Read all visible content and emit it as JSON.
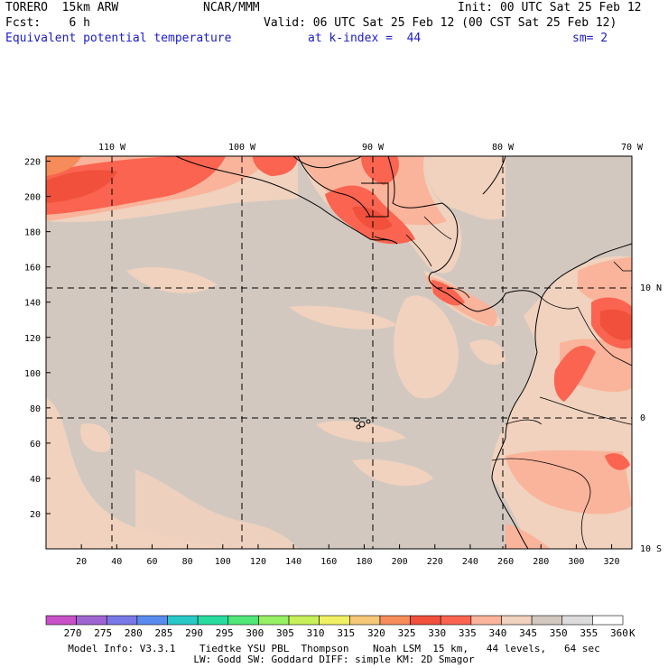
{
  "header": {
    "model": "TORERO  15km ARW",
    "center": "NCAR/MMM",
    "init": "Init: 00 UTC Sat 25 Feb 12",
    "fcst": "Fcst:    6 h",
    "valid": "Valid: 06 UTC Sat 25 Feb 12 (00 CST Sat 25 Feb 12)",
    "field": "Equivalent potential temperature",
    "level": "at k-index =  44",
    "smooth": "sm= 2"
  },
  "map": {
    "lon_labels": [
      "110 W",
      "100 W",
      "90 W",
      "80 W",
      "70 W"
    ],
    "lat_labels": [
      "10 N",
      "0",
      "10 S"
    ],
    "y_ticks": [
      "20",
      "40",
      "60",
      "80",
      "100",
      "120",
      "140",
      "160",
      "180",
      "200",
      "220"
    ],
    "x_ticks": [
      "20",
      "40",
      "60",
      "80",
      "100",
      "120",
      "140",
      "160",
      "180",
      "200",
      "220",
      "240",
      "260",
      "280",
      "300",
      "320"
    ]
  },
  "colorbar": {
    "labels": [
      "270",
      "275",
      "280",
      "285",
      "290",
      "295",
      "300",
      "305",
      "310",
      "315",
      "320",
      "325",
      "330",
      "335",
      "340",
      "345",
      "350",
      "355",
      "360"
    ],
    "unit": "K",
    "colors": [
      "#c850c8",
      "#a064d2",
      "#7878e6",
      "#5a8cf0",
      "#28c8c8",
      "#28dca0",
      "#50e678",
      "#96f064",
      "#c8f05a",
      "#f0f064",
      "#f5c878",
      "#f58c5a",
      "#f0503c",
      "#fa6450",
      "#fab49b",
      "#f0d2be",
      "#d2c8c0",
      "#dcdcdc",
      "#ffffff"
    ]
  },
  "footer": {
    "line1": "Model Info: V3.3.1    Tiedtke YSU PBL  Thompson    Noah LSM  15 km,   44 levels,   64 sec",
    "line2": "LW: Godd SW: Goddard DIFF: simple KM: 2D Smagor"
  },
  "colors": {
    "land_tint": "#f0d2be",
    "ocean": "#d2c8c0",
    "warm": "#fab49b",
    "hot": "#fa6450",
    "hottest": "#f0503c"
  }
}
